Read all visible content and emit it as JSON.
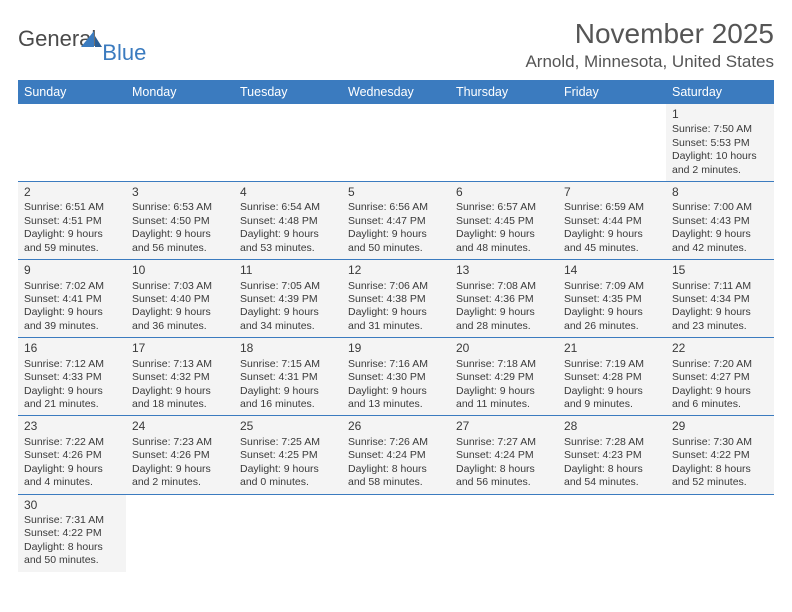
{
  "logo": {
    "text1": "General",
    "text2": "Blue"
  },
  "title": "November 2025",
  "location": "Arnold, Minnesota, United States",
  "colors": {
    "header_bg": "#3b7bbf",
    "header_text": "#ffffff",
    "cell_bg": "#f4f4f4",
    "text": "#3a3a3a",
    "row_border": "#3b7bbf"
  },
  "weekdays": [
    "Sunday",
    "Monday",
    "Tuesday",
    "Wednesday",
    "Thursday",
    "Friday",
    "Saturday"
  ],
  "weeks": [
    [
      null,
      null,
      null,
      null,
      null,
      null,
      {
        "n": "1",
        "sr": "Sunrise: 7:50 AM",
        "ss": "Sunset: 5:53 PM",
        "d1": "Daylight: 10 hours",
        "d2": "and 2 minutes."
      }
    ],
    [
      {
        "n": "2",
        "sr": "Sunrise: 6:51 AM",
        "ss": "Sunset: 4:51 PM",
        "d1": "Daylight: 9 hours",
        "d2": "and 59 minutes."
      },
      {
        "n": "3",
        "sr": "Sunrise: 6:53 AM",
        "ss": "Sunset: 4:50 PM",
        "d1": "Daylight: 9 hours",
        "d2": "and 56 minutes."
      },
      {
        "n": "4",
        "sr": "Sunrise: 6:54 AM",
        "ss": "Sunset: 4:48 PM",
        "d1": "Daylight: 9 hours",
        "d2": "and 53 minutes."
      },
      {
        "n": "5",
        "sr": "Sunrise: 6:56 AM",
        "ss": "Sunset: 4:47 PM",
        "d1": "Daylight: 9 hours",
        "d2": "and 50 minutes."
      },
      {
        "n": "6",
        "sr": "Sunrise: 6:57 AM",
        "ss": "Sunset: 4:45 PM",
        "d1": "Daylight: 9 hours",
        "d2": "and 48 minutes."
      },
      {
        "n": "7",
        "sr": "Sunrise: 6:59 AM",
        "ss": "Sunset: 4:44 PM",
        "d1": "Daylight: 9 hours",
        "d2": "and 45 minutes."
      },
      {
        "n": "8",
        "sr": "Sunrise: 7:00 AM",
        "ss": "Sunset: 4:43 PM",
        "d1": "Daylight: 9 hours",
        "d2": "and 42 minutes."
      }
    ],
    [
      {
        "n": "9",
        "sr": "Sunrise: 7:02 AM",
        "ss": "Sunset: 4:41 PM",
        "d1": "Daylight: 9 hours",
        "d2": "and 39 minutes."
      },
      {
        "n": "10",
        "sr": "Sunrise: 7:03 AM",
        "ss": "Sunset: 4:40 PM",
        "d1": "Daylight: 9 hours",
        "d2": "and 36 minutes."
      },
      {
        "n": "11",
        "sr": "Sunrise: 7:05 AM",
        "ss": "Sunset: 4:39 PM",
        "d1": "Daylight: 9 hours",
        "d2": "and 34 minutes."
      },
      {
        "n": "12",
        "sr": "Sunrise: 7:06 AM",
        "ss": "Sunset: 4:38 PM",
        "d1": "Daylight: 9 hours",
        "d2": "and 31 minutes."
      },
      {
        "n": "13",
        "sr": "Sunrise: 7:08 AM",
        "ss": "Sunset: 4:36 PM",
        "d1": "Daylight: 9 hours",
        "d2": "and 28 minutes."
      },
      {
        "n": "14",
        "sr": "Sunrise: 7:09 AM",
        "ss": "Sunset: 4:35 PM",
        "d1": "Daylight: 9 hours",
        "d2": "and 26 minutes."
      },
      {
        "n": "15",
        "sr": "Sunrise: 7:11 AM",
        "ss": "Sunset: 4:34 PM",
        "d1": "Daylight: 9 hours",
        "d2": "and 23 minutes."
      }
    ],
    [
      {
        "n": "16",
        "sr": "Sunrise: 7:12 AM",
        "ss": "Sunset: 4:33 PM",
        "d1": "Daylight: 9 hours",
        "d2": "and 21 minutes."
      },
      {
        "n": "17",
        "sr": "Sunrise: 7:13 AM",
        "ss": "Sunset: 4:32 PM",
        "d1": "Daylight: 9 hours",
        "d2": "and 18 minutes."
      },
      {
        "n": "18",
        "sr": "Sunrise: 7:15 AM",
        "ss": "Sunset: 4:31 PM",
        "d1": "Daylight: 9 hours",
        "d2": "and 16 minutes."
      },
      {
        "n": "19",
        "sr": "Sunrise: 7:16 AM",
        "ss": "Sunset: 4:30 PM",
        "d1": "Daylight: 9 hours",
        "d2": "and 13 minutes."
      },
      {
        "n": "20",
        "sr": "Sunrise: 7:18 AM",
        "ss": "Sunset: 4:29 PM",
        "d1": "Daylight: 9 hours",
        "d2": "and 11 minutes."
      },
      {
        "n": "21",
        "sr": "Sunrise: 7:19 AM",
        "ss": "Sunset: 4:28 PM",
        "d1": "Daylight: 9 hours",
        "d2": "and 9 minutes."
      },
      {
        "n": "22",
        "sr": "Sunrise: 7:20 AM",
        "ss": "Sunset: 4:27 PM",
        "d1": "Daylight: 9 hours",
        "d2": "and 6 minutes."
      }
    ],
    [
      {
        "n": "23",
        "sr": "Sunrise: 7:22 AM",
        "ss": "Sunset: 4:26 PM",
        "d1": "Daylight: 9 hours",
        "d2": "and 4 minutes."
      },
      {
        "n": "24",
        "sr": "Sunrise: 7:23 AM",
        "ss": "Sunset: 4:26 PM",
        "d1": "Daylight: 9 hours",
        "d2": "and 2 minutes."
      },
      {
        "n": "25",
        "sr": "Sunrise: 7:25 AM",
        "ss": "Sunset: 4:25 PM",
        "d1": "Daylight: 9 hours",
        "d2": "and 0 minutes."
      },
      {
        "n": "26",
        "sr": "Sunrise: 7:26 AM",
        "ss": "Sunset: 4:24 PM",
        "d1": "Daylight: 8 hours",
        "d2": "and 58 minutes."
      },
      {
        "n": "27",
        "sr": "Sunrise: 7:27 AM",
        "ss": "Sunset: 4:24 PM",
        "d1": "Daylight: 8 hours",
        "d2": "and 56 minutes."
      },
      {
        "n": "28",
        "sr": "Sunrise: 7:28 AM",
        "ss": "Sunset: 4:23 PM",
        "d1": "Daylight: 8 hours",
        "d2": "and 54 minutes."
      },
      {
        "n": "29",
        "sr": "Sunrise: 7:30 AM",
        "ss": "Sunset: 4:22 PM",
        "d1": "Daylight: 8 hours",
        "d2": "and 52 minutes."
      }
    ],
    [
      {
        "n": "30",
        "sr": "Sunrise: 7:31 AM",
        "ss": "Sunset: 4:22 PM",
        "d1": "Daylight: 8 hours",
        "d2": "and 50 minutes."
      },
      null,
      null,
      null,
      null,
      null,
      null
    ]
  ]
}
